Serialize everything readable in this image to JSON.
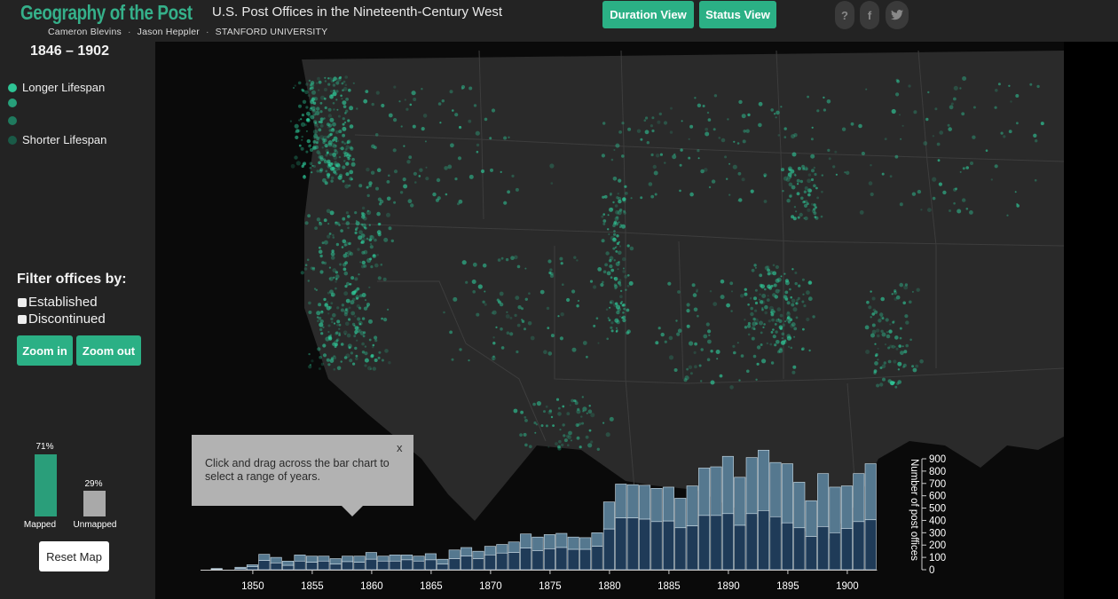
{
  "header": {
    "brand": "Geography of the Post",
    "subtitle": "U.S. Post Offices in the Nineteenth-Century West",
    "credits": [
      "Cameron Blevins",
      "Jason Heppler",
      "STANFORD UNIVERSITY"
    ],
    "buttons": {
      "duration": "Duration View",
      "status": "Status View"
    },
    "icons": [
      "question-icon",
      "facebook-icon",
      "twitter-icon"
    ],
    "icon_glyphs": {
      "question": "?",
      "facebook": "f",
      "twitter": "t"
    }
  },
  "sidebar": {
    "year_range": "1846 – 1902",
    "legend": [
      {
        "label": "Longer Lifespan",
        "color": "#2fc495"
      },
      {
        "label": "",
        "color": "#27a07a"
      },
      {
        "label": "",
        "color": "#1f7a5e"
      },
      {
        "label": "Shorter Lifespan",
        "color": "#1a5a47"
      }
    ],
    "filter": {
      "title": "Filter offices by:",
      "options": [
        "Established",
        "Discontinued"
      ],
      "zoom_in": "Zoom in",
      "zoom_out": "Zoom out"
    },
    "mapped": {
      "label": "Mapped",
      "percent": "71%",
      "value": 71,
      "color": "#2a9e7a"
    },
    "unmapped": {
      "label": "Unmapped",
      "percent": "29%",
      "value": 29,
      "color": "#a9a9a9"
    },
    "reset": "Reset Map"
  },
  "tooltip": {
    "text": "Click and drag across the bar chart to select a range of years.",
    "close": "x"
  },
  "colors": {
    "accent": "#2bb085",
    "map_dot": "#2fd3a0",
    "bar_dark": "#1f3b58",
    "bar_light": "#55788f"
  },
  "chart_data": {
    "type": "bar",
    "ylabel": "Number of post offices",
    "ylim": [
      0,
      900
    ],
    "yticks": [
      0,
      100,
      200,
      300,
      400,
      500,
      600,
      700,
      800,
      900
    ],
    "xticks": [
      1850,
      1855,
      1860,
      1865,
      1870,
      1875,
      1880,
      1885,
      1890,
      1895,
      1900
    ],
    "years": [
      1847,
      1848,
      1849,
      1850,
      1851,
      1852,
      1853,
      1854,
      1855,
      1856,
      1857,
      1858,
      1859,
      1860,
      1861,
      1862,
      1863,
      1864,
      1865,
      1866,
      1867,
      1868,
      1869,
      1870,
      1871,
      1872,
      1873,
      1874,
      1875,
      1876,
      1877,
      1878,
      1879,
      1880,
      1881,
      1882,
      1883,
      1884,
      1885,
      1886,
      1887,
      1888,
      1889,
      1890,
      1891,
      1892,
      1893,
      1894,
      1895,
      1896,
      1897,
      1898,
      1899,
      1900,
      1901,
      1902
    ],
    "series": [
      {
        "name": "Mapped",
        "values": [
          5,
          0,
          10,
          25,
          75,
          55,
          35,
          70,
          60,
          70,
          45,
          65,
          60,
          85,
          70,
          70,
          80,
          70,
          80,
          45,
          90,
          110,
          90,
          120,
          135,
          140,
          175,
          155,
          170,
          180,
          165,
          165,
          190,
          330,
          420,
          420,
          410,
          390,
          395,
          340,
          355,
          440,
          440,
          455,
          360,
          455,
          480,
          430,
          380,
          340,
          270,
          350,
          300,
          335,
          390,
          405
        ]
      },
      {
        "name": "Unmapped",
        "values": [
          5,
          0,
          10,
          15,
          50,
          45,
          35,
          50,
          50,
          40,
          45,
          45,
          50,
          55,
          40,
          50,
          40,
          40,
          50,
          40,
          70,
          70,
          60,
          70,
          70,
          85,
          115,
          110,
          115,
          115,
          100,
          95,
          110,
          220,
          275,
          270,
          275,
          270,
          275,
          240,
          325,
          385,
          395,
          465,
          390,
          455,
          490,
          440,
          480,
          370,
          290,
          430,
          370,
          345,
          390,
          455
        ]
      }
    ]
  }
}
